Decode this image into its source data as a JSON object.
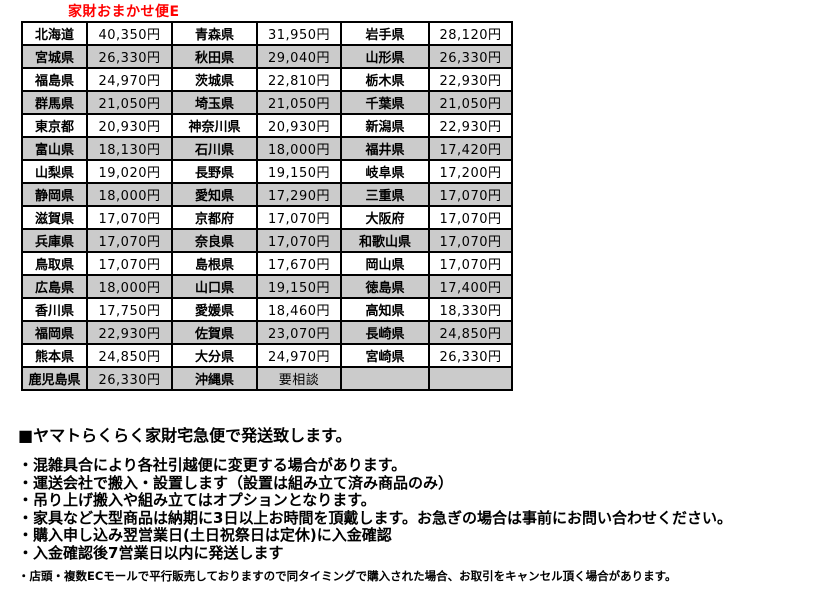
{
  "title": "家財おまかせ便E",
  "colors": {
    "title_red": "#ff0000",
    "row_alt_gray": "#cbcbcb",
    "border_black": "#000000",
    "background": "#ffffff"
  },
  "table": {
    "columns": [
      "prefecture",
      "price",
      "prefecture",
      "price",
      "prefecture",
      "price"
    ],
    "rows": [
      [
        "北海道",
        "40,350円",
        "青森県",
        "31,950円",
        "岩手県",
        "28,120円"
      ],
      [
        "宮城県",
        "26,330円",
        "秋田県",
        "29,040円",
        "山形県",
        "26,330円"
      ],
      [
        "福島県",
        "24,970円",
        "茨城県",
        "22,810円",
        "栃木県",
        "22,930円"
      ],
      [
        "群馬県",
        "21,050円",
        "埼玉県",
        "21,050円",
        "千葉県",
        "21,050円"
      ],
      [
        "東京都",
        "20,930円",
        "神奈川県",
        "20,930円",
        "新潟県",
        "22,930円"
      ],
      [
        "富山県",
        "18,130円",
        "石川県",
        "18,000円",
        "福井県",
        "17,420円"
      ],
      [
        "山梨県",
        "19,020円",
        "長野県",
        "19,150円",
        "岐阜県",
        "17,200円"
      ],
      [
        "静岡県",
        "18,000円",
        "愛知県",
        "17,290円",
        "三重県",
        "17,070円"
      ],
      [
        "滋賀県",
        "17,070円",
        "京都府",
        "17,070円",
        "大阪府",
        "17,070円"
      ],
      [
        "兵庫県",
        "17,070円",
        "奈良県",
        "17,070円",
        "和歌山県",
        "17,070円"
      ],
      [
        "鳥取県",
        "17,070円",
        "島根県",
        "17,670円",
        "岡山県",
        "17,070円"
      ],
      [
        "広島県",
        "18,000円",
        "山口県",
        "19,150円",
        "徳島県",
        "17,400円"
      ],
      [
        "香川県",
        "17,750円",
        "愛媛県",
        "18,460円",
        "高知県",
        "18,330円"
      ],
      [
        "福岡県",
        "22,930円",
        "佐賀県",
        "23,070円",
        "長崎県",
        "24,850円"
      ],
      [
        "熊本県",
        "24,850円",
        "大分県",
        "24,970円",
        "宮崎県",
        "26,330円"
      ],
      [
        "鹿児島県",
        "26,330円",
        "沖縄県",
        "要相談",
        "",
        ""
      ]
    ]
  },
  "notes": {
    "heading": "■ヤマトらくらく家財宅急便で発送致します。",
    "bullets": [
      "・混雑具合により各社引越便に変更する場合があります。",
      "・運送会社で搬入・設置します（設置は組み立て済み商品のみ）",
      "・吊り上げ搬入や組み立てはオプションとなります。",
      "・家具など大型商品は納期に3日以上お時間を頂戴します。お急ぎの場合は事前にお問い合わせください。",
      "・購入申し込み翌営業日(土日祝祭日は定休)に入金確認",
      "・入金確認後7営業日以内に発送します"
    ],
    "fine_print": "・店頭・複数ECモールで平行販売しておりますので同タイミングで購入された場合、お取引をキャンセル頂く場合があります。"
  }
}
